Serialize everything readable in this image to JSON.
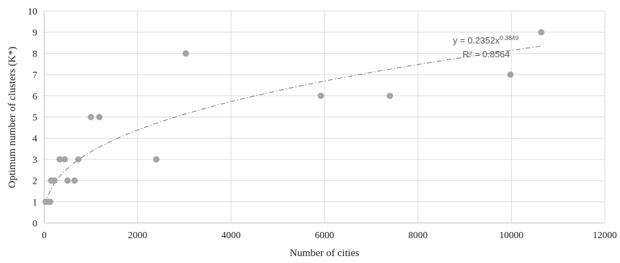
{
  "chart_data": {
    "type": "scatter",
    "xlabel": "Number of cities",
    "ylabel": "Optimum number of clusters (K*)",
    "xlim": [
      0,
      12000
    ],
    "ylim": [
      0,
      10
    ],
    "x_ticks": [
      "0",
      "2000",
      "4000",
      "6000",
      "8000",
      "10000",
      "12000"
    ],
    "y_ticks": [
      "0",
      "1",
      "2",
      "3",
      "4",
      "5",
      "6",
      "7",
      "8",
      "9",
      "10"
    ],
    "grid": true,
    "legend": "none",
    "series": [
      {
        "points": [
          {
            "x": 30,
            "y": 1
          },
          {
            "x": 60,
            "y": 1
          },
          {
            "x": 110,
            "y": 1
          },
          {
            "x": 130,
            "y": 1
          },
          {
            "x": 150,
            "y": 2
          },
          {
            "x": 180,
            "y": 2
          },
          {
            "x": 220,
            "y": 2
          },
          {
            "x": 330,
            "y": 3
          },
          {
            "x": 440,
            "y": 3
          },
          {
            "x": 500,
            "y": 2
          },
          {
            "x": 650,
            "y": 2
          },
          {
            "x": 730,
            "y": 3
          },
          {
            "x": 1000,
            "y": 5
          },
          {
            "x": 1180,
            "y": 5
          },
          {
            "x": 2400,
            "y": 3
          },
          {
            "x": 3030,
            "y": 8
          },
          {
            "x": 5920,
            "y": 6
          },
          {
            "x": 7400,
            "y": 6
          },
          {
            "x": 9980,
            "y": 7
          },
          {
            "x": 10640,
            "y": 9
          }
        ]
      }
    ],
    "trendline": {
      "type": "power",
      "coefficient": 0.2352,
      "exponent": 0.3849,
      "x_range": [
        30,
        10640
      ],
      "equation_base": "y = 0.2352x",
      "equation_exponent": "0.3849",
      "r_squared_label": "R² = 0.8564"
    },
    "colors": {
      "marker": "#a5a5a5",
      "trendline": "#6e6e6e",
      "grid": "#d9d9d9",
      "axis": "#bfbfbf"
    }
  }
}
